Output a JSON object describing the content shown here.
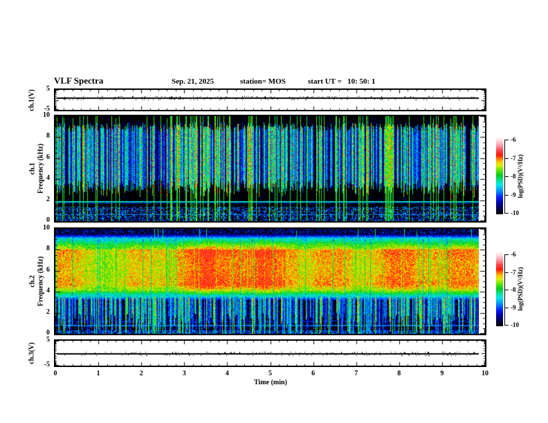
{
  "header": {
    "title": "VLF Spectra",
    "date": "Sep. 21, 2025",
    "station": "station= MOS",
    "start_ut": "start UT =   10: 50: 1"
  },
  "x_axis": {
    "label": "Time (min)",
    "tick_labels": [
      "0",
      "1",
      "2",
      "3",
      "4",
      "5",
      "6",
      "7",
      "8",
      "9",
      "10"
    ]
  },
  "panels": {
    "wave1": {
      "ylabel": "ch.1(V)",
      "tick_labels": [
        "5",
        "-5"
      ]
    },
    "spec1": {
      "ylabel_channel": "ch.1",
      "ylabel_axis": "Frequency (kHz)",
      "tick_labels": [
        "10",
        "8",
        "6",
        "4",
        "2",
        "0"
      ]
    },
    "spec2": {
      "ylabel_channel": "ch.2",
      "ylabel_axis": "Frequency (kHz)",
      "tick_labels": [
        "10",
        "8",
        "6",
        "4",
        "2",
        "0"
      ]
    },
    "wave3": {
      "ylabel": "ch.3(V)",
      "tick_labels": [
        "5",
        "-5"
      ]
    }
  },
  "colorbar": {
    "label": "log(PSD)(V²/Hz)",
    "tick_labels": [
      "-6",
      "-7",
      "-8",
      "-9",
      "-10"
    ]
  },
  "chart_data": {
    "type": "heatmap",
    "title": "VLF Spectra",
    "date": "Sep. 21, 2025",
    "station": "MOS",
    "start_ut": "10:50:1",
    "x": {
      "label": "Time (min)",
      "range": [
        0,
        10
      ],
      "major_ticks": [
        0,
        1,
        2,
        3,
        4,
        5,
        6,
        7,
        8,
        9,
        10
      ],
      "minor_tick_step": 0.2,
      "data_end_min": 9.85
    },
    "z": {
      "label": "log(PSD)(V²/Hz)",
      "range": [
        -10,
        -6
      ],
      "ticks": [
        -6,
        -7,
        -8,
        -9,
        -10
      ]
    },
    "colormap": [
      [
        0.0,
        "#000000"
      ],
      [
        0.06,
        "#000040"
      ],
      [
        0.14,
        "#0000a0"
      ],
      [
        0.22,
        "#0020ff"
      ],
      [
        0.3,
        "#0090ff"
      ],
      [
        0.38,
        "#00e8e8"
      ],
      [
        0.45,
        "#00e080"
      ],
      [
        0.5,
        "#00cc20"
      ],
      [
        0.57,
        "#60e800"
      ],
      [
        0.63,
        "#d8f000"
      ],
      [
        0.68,
        "#ffc000"
      ],
      [
        0.72,
        "#ff7000"
      ],
      [
        0.76,
        "#ff1800"
      ],
      [
        0.82,
        "#ff4048"
      ],
      [
        0.88,
        "#ff90a0"
      ],
      [
        0.94,
        "#ffd0d8"
      ],
      [
        1.0,
        "#ffffff"
      ]
    ],
    "panels": [
      {
        "channel": "ch.1(V)",
        "kind": "waveform",
        "y_range": [
          -5,
          5
        ],
        "y_ticks": [
          5,
          -5
        ],
        "summary": "flat trace at ~0 V from 0 to ~9.85 min",
        "render": {
          "seed": 5,
          "line_y_frac": 0.38
        }
      },
      {
        "channel": "ch.1",
        "kind": "spectrogram",
        "y_label": "Frequency (kHz)",
        "y_range": [
          0,
          10
        ],
        "y_major_tick_khz": 2,
        "features": [
          "dense impulsive sferic streaks between ~3.2 and ~9.4 kHz (cyan-green, sporadic yellow-red cores)",
          "black background above ~9.4 kHz and below ~3 kHz",
          "thin horizontal cyan lines near 1.9 kHz and 0.6 kHz",
          "weak blue speckle band 0.2-1.3 kHz"
        ],
        "render": {
          "seed": 11,
          "streak_density": 0.6,
          "band_khz": [
            3.2,
            9.45
          ],
          "hot_lines_khz": [
            1.87,
            1.68,
            0.63
          ],
          "low_band_khz": [
            0.2,
            1.35
          ]
        }
      },
      {
        "channel": "ch.2",
        "kind": "spectrogram",
        "y_label": "Frequency (kHz)",
        "y_range": [
          0,
          10
        ],
        "y_major_tick_khz": 2,
        "features": [
          "continuous hiss band with red-orange core ~4.6-8 kHz",
          "yellow-green edges near 3.6-4.6 and 8-9.1 kHz",
          "dark blue region below ~3.4 kHz crossed by dense cyan-green sferic streaks",
          "dark speckled band above ~9.5 kHz",
          "faint horizontal blue lines near 0.8-2 kHz"
        ],
        "render": {
          "seed": 77,
          "streak_density": 0.55,
          "core_khz": [
            4.65,
            8.0
          ],
          "hot_lines_khz": [
            0.78,
            1.2,
            1.55,
            1.95
          ]
        }
      },
      {
        "channel": "ch.3(V)",
        "kind": "waveform",
        "y_range": [
          -5,
          5
        ],
        "y_ticks": [
          5,
          -5
        ],
        "summary": "flat trace at ~0 V from 0 to ~9.85 min",
        "render": {
          "seed": 9,
          "line_y_frac": 0.5
        }
      }
    ]
  }
}
